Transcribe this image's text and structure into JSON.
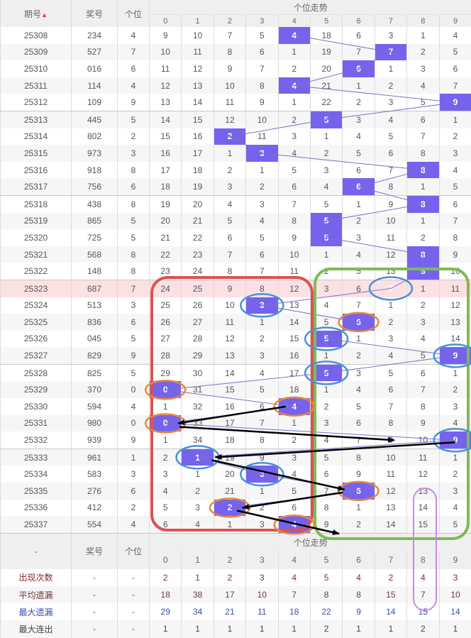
{
  "header": {
    "issue": "期号",
    "sort_icon": "sort-asc-icon",
    "prize": "奖号",
    "units": "个位",
    "trend": "个位走势",
    "digits": [
      "0",
      "1",
      "2",
      "3",
      "4",
      "5",
      "6",
      "7",
      "8",
      "9"
    ]
  },
  "colors": {
    "hit": "#7563ee",
    "line": "#7a70c8",
    "highlight_row": "#fbe1e3",
    "red_box": "#d9534f",
    "green_box": "#7dbb55",
    "purple_box": "#c68be8",
    "blue_ellipse": "#4a90d9",
    "orange_ellipse": "#e8883a"
  },
  "highlighted_issue": "25323",
  "rows": [
    {
      "issue": "25308",
      "prize": "234",
      "unit": "4",
      "cells": [
        "9",
        "10",
        "7",
        "5",
        "4",
        "18",
        "6",
        "3",
        "1",
        "4"
      ]
    },
    {
      "issue": "25309",
      "prize": "527",
      "unit": "7",
      "cells": [
        "10",
        "11",
        "8",
        "6",
        "1",
        "19",
        "7",
        "7",
        "2",
        "5"
      ]
    },
    {
      "issue": "25310",
      "prize": "016",
      "unit": "6",
      "cells": [
        "11",
        "12",
        "9",
        "7",
        "2",
        "20",
        "6",
        "1",
        "3",
        "6"
      ]
    },
    {
      "issue": "25311",
      "prize": "114",
      "unit": "4",
      "cells": [
        "12",
        "13",
        "10",
        "8",
        "4",
        "21",
        "1",
        "2",
        "4",
        "7"
      ]
    },
    {
      "issue": "25312",
      "prize": "109",
      "unit": "9",
      "cells": [
        "13",
        "14",
        "11",
        "9",
        "1",
        "22",
        "2",
        "3",
        "5",
        "9"
      ]
    },
    {
      "issue": "25313",
      "prize": "445",
      "unit": "5",
      "cells": [
        "14",
        "15",
        "12",
        "10",
        "2",
        "5",
        "3",
        "4",
        "6",
        "1"
      ]
    },
    {
      "issue": "25314",
      "prize": "802",
      "unit": "2",
      "cells": [
        "15",
        "16",
        "2",
        "11",
        "3",
        "1",
        "4",
        "5",
        "7",
        "2"
      ]
    },
    {
      "issue": "25315",
      "prize": "973",
      "unit": "3",
      "cells": [
        "16",
        "17",
        "1",
        "3",
        "4",
        "2",
        "5",
        "6",
        "8",
        "3"
      ]
    },
    {
      "issue": "25316",
      "prize": "918",
      "unit": "8",
      "cells": [
        "17",
        "18",
        "2",
        "1",
        "5",
        "3",
        "6",
        "7",
        "8",
        "4"
      ]
    },
    {
      "issue": "25317",
      "prize": "756",
      "unit": "6",
      "cells": [
        "18",
        "19",
        "3",
        "2",
        "6",
        "4",
        "6",
        "8",
        "1",
        "5"
      ]
    },
    {
      "issue": "25318",
      "prize": "438",
      "unit": "8",
      "cells": [
        "19",
        "20",
        "4",
        "3",
        "7",
        "5",
        "1",
        "9",
        "8",
        "6"
      ]
    },
    {
      "issue": "25319",
      "prize": "865",
      "unit": "5",
      "cells": [
        "20",
        "21",
        "5",
        "4",
        "8",
        "5",
        "2",
        "10",
        "1",
        "7"
      ]
    },
    {
      "issue": "25320",
      "prize": "725",
      "unit": "5",
      "cells": [
        "21",
        "22",
        "6",
        "5",
        "9",
        "5",
        "3",
        "11",
        "2",
        "8"
      ]
    },
    {
      "issue": "25321",
      "prize": "568",
      "unit": "8",
      "cells": [
        "22",
        "23",
        "7",
        "6",
        "10",
        "1",
        "4",
        "12",
        "8",
        "9"
      ]
    },
    {
      "issue": "25322",
      "prize": "148",
      "unit": "8",
      "cells": [
        "23",
        "24",
        "8",
        "7",
        "11",
        "2",
        "5",
        "13",
        "8",
        "10"
      ]
    },
    {
      "issue": "25323",
      "prize": "687",
      "unit": "7",
      "cells": [
        "24",
        "25",
        "9",
        "8",
        "12",
        "3",
        "6",
        "7",
        "1",
        "11"
      ]
    },
    {
      "issue": "25324",
      "prize": "513",
      "unit": "3",
      "cells": [
        "25",
        "26",
        "10",
        "3",
        "13",
        "4",
        "7",
        "1",
        "2",
        "12"
      ]
    },
    {
      "issue": "25325",
      "prize": "836",
      "unit": "6",
      "cells": [
        "26",
        "27",
        "11",
        "1",
        "14",
        "5",
        "6",
        "2",
        "3",
        "13"
      ]
    },
    {
      "issue": "25326",
      "prize": "045",
      "unit": "5",
      "cells": [
        "27",
        "28",
        "12",
        "2",
        "15",
        "5",
        "1",
        "3",
        "4",
        "14"
      ]
    },
    {
      "issue": "25327",
      "prize": "829",
      "unit": "9",
      "cells": [
        "28",
        "29",
        "13",
        "3",
        "16",
        "1",
        "2",
        "4",
        "5",
        "9"
      ]
    },
    {
      "issue": "25328",
      "prize": "825",
      "unit": "5",
      "cells": [
        "29",
        "30",
        "14",
        "4",
        "17",
        "5",
        "3",
        "5",
        "6",
        "1"
      ]
    },
    {
      "issue": "25329",
      "prize": "370",
      "unit": "0",
      "cells": [
        "0",
        "31",
        "15",
        "5",
        "18",
        "1",
        "4",
        "6",
        "7",
        "2"
      ]
    },
    {
      "issue": "25330",
      "prize": "594",
      "unit": "4",
      "cells": [
        "1",
        "32",
        "16",
        "6",
        "4",
        "2",
        "5",
        "7",
        "8",
        "3"
      ]
    },
    {
      "issue": "25331",
      "prize": "980",
      "unit": "0",
      "cells": [
        "0",
        "33",
        "17",
        "7",
        "1",
        "3",
        "6",
        "8",
        "9",
        "4"
      ]
    },
    {
      "issue": "25332",
      "prize": "939",
      "unit": "9",
      "cells": [
        "1",
        "34",
        "18",
        "8",
        "2",
        "4",
        "7",
        "9",
        "10",
        "9"
      ]
    },
    {
      "issue": "25333",
      "prize": "961",
      "unit": "1",
      "cells": [
        "2",
        "1",
        "19",
        "9",
        "3",
        "5",
        "8",
        "10",
        "11",
        "1"
      ]
    },
    {
      "issue": "25334",
      "prize": "583",
      "unit": "3",
      "cells": [
        "3",
        "1",
        "20",
        "3",
        "4",
        "6",
        "9",
        "11",
        "12",
        "2"
      ]
    },
    {
      "issue": "25335",
      "prize": "276",
      "unit": "6",
      "cells": [
        "4",
        "2",
        "21",
        "1",
        "5",
        "7",
        "6",
        "12",
        "13",
        "3"
      ]
    },
    {
      "issue": "25336",
      "prize": "412",
      "unit": "2",
      "cells": [
        "5",
        "3",
        "2",
        "2",
        "6",
        "8",
        "1",
        "13",
        "14",
        "4"
      ]
    },
    {
      "issue": "25337",
      "prize": "554",
      "unit": "4",
      "cells": [
        "6",
        "4",
        "1",
        "3",
        "4",
        "9",
        "2",
        "14",
        "15",
        "5"
      ]
    }
  ],
  "footer": {
    "dash": "-",
    "prize": "奖号",
    "units": "个位",
    "trend": "个位走势",
    "stats": [
      {
        "label": "出现次数",
        "color": "c-red",
        "values": [
          "2",
          "1",
          "2",
          "3",
          "4",
          "5",
          "4",
          "2",
          "4",
          "3"
        ]
      },
      {
        "label": "平均遗漏",
        "color": "c-brown",
        "values": [
          "18",
          "38",
          "17",
          "10",
          "7",
          "8",
          "8",
          "15",
          "7",
          "10"
        ]
      },
      {
        "label": "最大遗漏",
        "color": "c-blue",
        "values": [
          "29",
          "34",
          "21",
          "11",
          "18",
          "22",
          "9",
          "14",
          "15",
          "14"
        ]
      },
      {
        "label": "最大连出",
        "color": "c-dark",
        "values": [
          "1",
          "1",
          "1",
          "1",
          "1",
          "2",
          "1",
          "1",
          "2",
          "1"
        ]
      }
    ]
  }
}
